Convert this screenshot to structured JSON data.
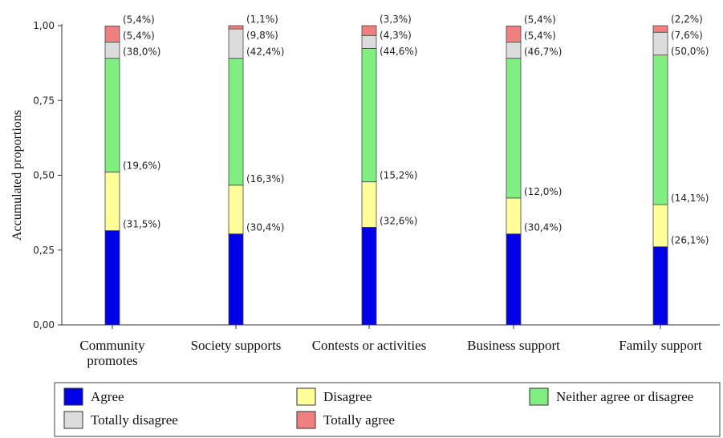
{
  "chart_data": {
    "type": "bar",
    "stacked": true,
    "ylabel": "Accumulated proportions",
    "ylim": [
      0,
      1
    ],
    "yticks": [
      "0,00",
      "0,25",
      "0,50",
      "0,75",
      "1,00"
    ],
    "categories": [
      [
        "Community",
        "promotes"
      ],
      [
        "Society supports"
      ],
      [
        "Contests or activities"
      ],
      [
        "Business support"
      ],
      [
        "Family support"
      ]
    ],
    "series": [
      {
        "name": "Agree",
        "color": "#0000e6",
        "values": [
          0.315,
          0.304,
          0.326,
          0.304,
          0.261
        ],
        "labels": [
          "(31,5%)",
          "(30,4%)",
          "(32,6%)",
          "(30,4%)",
          "(26,1%)"
        ]
      },
      {
        "name": "Disagree",
        "color": "#ffff99",
        "values": [
          0.196,
          0.163,
          0.152,
          0.12,
          0.141
        ],
        "labels": [
          "(19,6%)",
          "(16,3%)",
          "(15,2%)",
          "(12,0%)",
          "(14,1%)"
        ]
      },
      {
        "name": "Neither agree or disagree",
        "color": "#80ee80",
        "values": [
          0.38,
          0.424,
          0.446,
          0.467,
          0.5
        ],
        "labels": [
          "(38,0%)",
          "(42,4%)",
          "(44,6%)",
          "(46,7%)",
          "(50,0%)"
        ]
      },
      {
        "name": "Totally disagree",
        "color": "#dcdcdc",
        "values": [
          0.054,
          0.098,
          0.043,
          0.054,
          0.076
        ],
        "labels": [
          "(5,4%)",
          "(9,8%)",
          "(4,3%)",
          "(5,4%)",
          "(7,6%)"
        ]
      },
      {
        "name": "Totally agree",
        "color": "#f08080",
        "values": [
          0.054,
          0.011,
          0.033,
          0.054,
          0.022
        ],
        "labels": [
          "(5,4%)",
          "(1,1%)",
          "(3,3%)",
          "(5,4%)",
          "(2,2%)"
        ]
      }
    ],
    "legend": {
      "placement": "bottom",
      "rows": [
        [
          "Agree",
          "Disagree",
          "Neither agree or disagree"
        ],
        [
          "Totally disagree",
          "Totally agree"
        ]
      ]
    }
  }
}
